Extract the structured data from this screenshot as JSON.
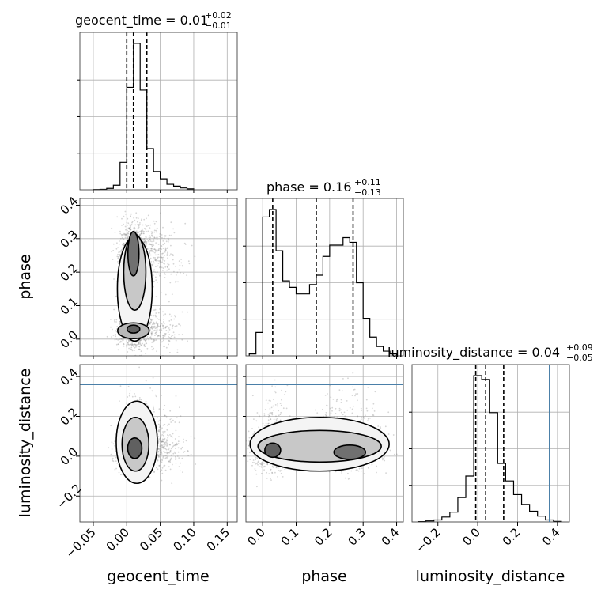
{
  "chart_data": {
    "type": "corner",
    "parameters": [
      "geocent_time",
      "phase",
      "luminosity_distance"
    ],
    "axes": {
      "geocent_time": {
        "label": "geocent_time",
        "range": [
          -0.07,
          0.165
        ],
        "ticks": [
          -0.05,
          0.0,
          0.05,
          0.1,
          0.15
        ],
        "tick_labels": [
          "−0.05",
          "0.00",
          "0.05",
          "0.10",
          "0.15"
        ]
      },
      "phase": {
        "label": "phase",
        "range": [
          -0.05,
          0.42
        ],
        "ticks": [
          0.0,
          0.1,
          0.2,
          0.3,
          0.4
        ],
        "tick_labels": [
          "0.0",
          "0.1",
          "0.2",
          "0.3",
          "0.4"
        ]
      },
      "luminosity_distance": {
        "label": "luminosity_distance",
        "range": [
          -0.33,
          0.46
        ],
        "ticks": [
          -0.2,
          0.0,
          0.2,
          0.4
        ],
        "tick_labels": [
          "−0.2",
          "0.0",
          "0.2",
          "0.4"
        ]
      }
    },
    "titles": {
      "geocent_time": {
        "name": "geocent_time",
        "median": "0.01",
        "plus": "+0.02",
        "minus": "−0.01"
      },
      "phase": {
        "name": "phase",
        "median": "0.16",
        "plus": "+0.11",
        "minus": "−0.13"
      },
      "luminosity_distance": {
        "name": "luminosity_distance",
        "median": "0.04",
        "plus": "+0.09",
        "minus": "−0.05"
      }
    },
    "quantiles": {
      "geocent_time": [
        0.0,
        0.01,
        0.03
      ],
      "phase": [
        0.03,
        0.16,
        0.27
      ],
      "luminosity_distance": [
        -0.01,
        0.04,
        0.13
      ]
    },
    "truth": {
      "luminosity_distance": 0.36,
      "color": "#4a7fa8"
    },
    "histograms": {
      "geocent_time": {
        "edges": [
          -0.05,
          -0.04,
          -0.03,
          -0.02,
          -0.01,
          0.0,
          0.01,
          0.02,
          0.03,
          0.04,
          0.05,
          0.06,
          0.07,
          0.08,
          0.09,
          0.1
        ],
        "counts": [
          0.2,
          0.5,
          1.5,
          5,
          30,
          112,
          160,
          109,
          45,
          20,
          12,
          6,
          4,
          2,
          1
        ]
      },
      "phase": {
        "edges": [
          -0.04,
          -0.02,
          0.0,
          0.02,
          0.04,
          0.06,
          0.08,
          0.1,
          0.12,
          0.14,
          0.16,
          0.18,
          0.2,
          0.22,
          0.24,
          0.26,
          0.28,
          0.3,
          0.32,
          0.34,
          0.36,
          0.38,
          0.4
        ],
        "counts": [
          2,
          25,
          148,
          156,
          112,
          80,
          73,
          66,
          66,
          76,
          86,
          106,
          118,
          118,
          126,
          121,
          78,
          40,
          20,
          10,
          5,
          2
        ]
      },
      "luminosity_distance": {
        "edges": [
          -0.3,
          -0.26,
          -0.22,
          -0.18,
          -0.14,
          -0.1,
          -0.06,
          -0.02,
          0.02,
          0.06,
          0.1,
          0.14,
          0.18,
          0.22,
          0.26,
          0.3,
          0.34,
          0.38,
          0.42
        ],
        "counts": [
          0.3,
          1,
          2,
          5,
          10,
          25,
          47,
          150,
          146,
          112,
          60,
          42,
          28,
          18,
          11,
          6,
          2,
          0.5
        ]
      }
    },
    "grid": true,
    "colors": {
      "line": "#000000",
      "grid": "#b0b0b0",
      "scatter": "#888888",
      "truth": "#4a7fa8"
    }
  }
}
